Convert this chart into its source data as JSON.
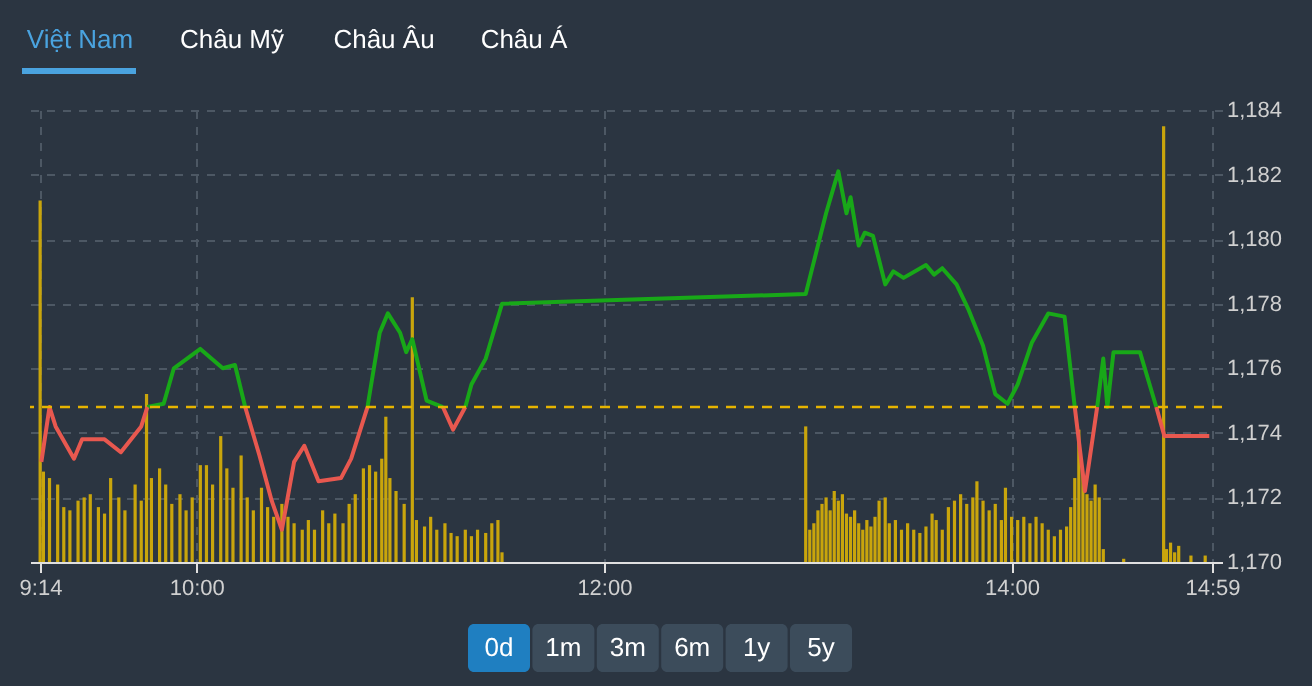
{
  "chart_data": {
    "type": "line",
    "annotations": [
      "Việt Nam",
      "Châu Mỹ",
      "Châu Âu",
      "Châu Á",
      "0d",
      "1m",
      "3m",
      "6m",
      "1y",
      "5y"
    ],
    "xlim": [
      9.233333,
      14.983333
    ],
    "xticks": [
      {
        "value": 9.233333,
        "label": "9:14"
      },
      {
        "value": 10,
        "label": "10:00"
      },
      {
        "value": 12,
        "label": "12:00"
      },
      {
        "value": 14,
        "label": "14:00"
      },
      {
        "value": 14.983333,
        "label": "14:59"
      }
    ],
    "ylim": [
      1170,
      1184
    ],
    "yticks": [
      {
        "value": 1170,
        "label": "1,170"
      },
      {
        "value": 1172,
        "label": "1,172"
      },
      {
        "value": 1174,
        "label": "1,174"
      },
      {
        "value": 1176,
        "label": "1,176"
      },
      {
        "value": 1178,
        "label": "1,178"
      },
      {
        "value": 1180,
        "label": "1,180"
      },
      {
        "value": 1182,
        "label": "1,182"
      },
      {
        "value": 1184,
        "label": "1,184"
      }
    ],
    "grid": true,
    "ref_lines": [
      {
        "axis": "y",
        "value": 1174.8,
        "color": "#e6b400",
        "line_style": "dashed"
      }
    ],
    "series": [
      {
        "type": "bar",
        "color": "#c9a50c",
        "x": [
          9.234,
          9.25,
          9.28,
          9.32,
          9.35,
          9.38,
          9.42,
          9.45,
          9.48,
          9.52,
          9.55,
          9.58,
          9.62,
          9.65,
          9.7,
          9.73,
          9.756,
          9.78,
          9.82,
          9.85,
          9.88,
          9.92,
          9.95,
          9.98,
          10.02,
          10.05,
          10.08,
          10.12,
          10.15,
          10.18,
          10.22,
          10.25,
          10.28,
          10.32,
          10.35,
          10.38,
          10.42,
          10.45,
          10.48,
          10.52,
          10.55,
          10.58,
          10.62,
          10.65,
          10.68,
          10.72,
          10.75,
          10.78,
          10.82,
          10.85,
          10.88,
          10.91,
          10.93,
          10.95,
          10.98,
          11.02,
          11.06,
          11.08,
          11.12,
          11.15,
          11.18,
          11.22,
          11.25,
          11.28,
          11.32,
          11.35,
          11.38,
          11.42,
          11.45,
          11.48,
          11.5,
          12.99,
          13.01,
          13.03,
          13.05,
          13.07,
          13.09,
          13.11,
          13.13,
          13.15,
          13.17,
          13.19,
          13.21,
          13.23,
          13.25,
          13.27,
          13.29,
          13.31,
          13.33,
          13.35,
          13.38,
          13.4,
          13.43,
          13.46,
          13.49,
          13.52,
          13.55,
          13.58,
          13.61,
          13.63,
          13.66,
          13.69,
          13.72,
          13.75,
          13.78,
          13.81,
          13.83,
          13.86,
          13.89,
          13.92,
          13.95,
          13.97,
          14.0,
          14.03,
          14.06,
          14.09,
          14.12,
          14.15,
          14.18,
          14.21,
          14.24,
          14.27,
          14.29,
          14.31,
          14.33,
          14.35,
          14.37,
          14.39,
          14.41,
          14.43,
          14.45,
          14.55,
          14.746,
          14.76,
          14.78,
          14.8,
          14.82,
          14.88,
          14.95
        ],
        "values": [
          1181.2,
          1172.8,
          1172.6,
          1172.4,
          1171.7,
          1171.6,
          1171.9,
          1172.0,
          1172.1,
          1171.7,
          1171.5,
          1172.6,
          1172.0,
          1171.6,
          1172.4,
          1171.9,
          1175.2,
          1172.6,
          1172.9,
          1172.4,
          1171.8,
          1172.1,
          1171.6,
          1172.0,
          1173.0,
          1173.0,
          1172.4,
          1173.9,
          1172.9,
          1172.3,
          1173.3,
          1172.0,
          1171.6,
          1172.3,
          1171.7,
          1171.4,
          1171.8,
          1171.4,
          1171.2,
          1171.0,
          1171.3,
          1171.0,
          1171.6,
          1171.2,
          1171.5,
          1171.2,
          1171.8,
          1172.1,
          1172.9,
          1173.0,
          1172.8,
          1173.2,
          1174.5,
          1172.6,
          1172.2,
          1171.8,
          1178.2,
          1171.3,
          1171.1,
          1171.4,
          1171.0,
          1171.2,
          1170.9,
          1170.8,
          1171.0,
          1170.8,
          1171.0,
          1170.9,
          1171.2,
          1171.3,
          1170.3,
          1174.2,
          1171.0,
          1171.2,
          1171.6,
          1171.8,
          1172.0,
          1171.6,
          1172.2,
          1171.9,
          1172.1,
          1171.5,
          1171.4,
          1171.6,
          1171.2,
          1171.0,
          1171.3,
          1171.1,
          1171.4,
          1171.9,
          1172.0,
          1171.2,
          1171.3,
          1171.0,
          1171.2,
          1171.0,
          1170.9,
          1171.1,
          1171.5,
          1171.3,
          1171.0,
          1171.7,
          1171.9,
          1172.1,
          1171.8,
          1172.0,
          1172.5,
          1171.9,
          1171.6,
          1171.8,
          1171.3,
          1172.3,
          1171.4,
          1171.3,
          1171.4,
          1171.2,
          1171.4,
          1171.2,
          1171.0,
          1170.8,
          1171.0,
          1171.1,
          1171.7,
          1172.6,
          1174.1,
          1172.7,
          1172.1,
          1171.9,
          1172.4,
          1172.0,
          1170.4,
          1170.1,
          1183.5,
          1170.4,
          1170.6,
          1170.3,
          1170.5,
          1170.2,
          1170.2
        ]
      },
      {
        "color": "#18a818",
        "x": [
          9.76,
          9.84,
          9.89,
          10.02,
          10.13,
          10.19,
          10.24,
          10.5,
          10.84,
          10.9,
          10.94,
          11.0,
          11.03,
          11.06,
          11.13,
          11.21,
          11.26,
          11.32,
          11.35,
          11.42,
          11.5,
          12.99,
          13.05,
          13.09,
          13.15,
          13.19,
          13.21,
          13.25,
          13.28,
          13.32,
          13.38,
          13.42,
          13.47,
          13.58,
          13.62,
          13.66,
          13.73,
          13.79,
          13.86,
          13.92,
          13.98,
          14.03,
          14.1,
          14.18,
          14.26,
          14.31,
          14.36,
          14.42,
          14.45,
          14.47,
          14.5,
          14.63,
          14.71
        ],
        "values": [
          1174.8,
          1174.9,
          1176.0,
          1176.6,
          1176.0,
          1176.1,
          1174.8,
          null,
          1174.8,
          1177.1,
          1177.7,
          1177.1,
          1176.5,
          1176.9,
          1175.0,
          1174.8,
          null,
          1174.8,
          1175.5,
          1176.3,
          1178.0,
          1178.3,
          1179.8,
          1180.8,
          1182.1,
          1180.8,
          1181.3,
          1179.8,
          1180.2,
          1180.1,
          1178.6,
          1179.0,
          1178.8,
          1179.2,
          1178.9,
          1179.1,
          1178.6,
          1177.8,
          1176.7,
          1175.2,
          1174.9,
          1175.5,
          1176.8,
          1177.7,
          1177.6,
          1174.8,
          null,
          1174.8,
          1176.3,
          1174.8,
          1176.5,
          1176.5,
          1174.8
        ]
      },
      {
        "color": "#e8584f",
        "x": [
          9.24,
          9.28,
          9.31,
          9.4,
          9.44,
          9.55,
          9.63,
          9.73,
          9.76,
          10.0,
          10.24,
          10.31,
          10.37,
          10.42,
          10.48,
          10.53,
          10.6,
          10.71,
          10.76,
          10.79,
          10.84,
          11.0,
          11.21,
          11.26,
          11.32,
          12.0,
          14.31,
          14.36,
          14.42,
          14.6,
          14.71,
          14.75,
          14.97
        ],
        "values": [
          1173.1,
          1174.8,
          1174.2,
          1173.2,
          1173.8,
          1173.8,
          1173.4,
          1174.2,
          1174.8,
          null,
          1174.8,
          1173.3,
          1171.9,
          1171.0,
          1173.1,
          1173.6,
          1172.5,
          1172.6,
          1173.2,
          1173.8,
          1174.8,
          null,
          1174.8,
          1174.1,
          1174.8,
          null,
          1174.8,
          1172.2,
          1174.8,
          null,
          1174.8,
          1173.9,
          1173.9
        ]
      }
    ]
  }
}
